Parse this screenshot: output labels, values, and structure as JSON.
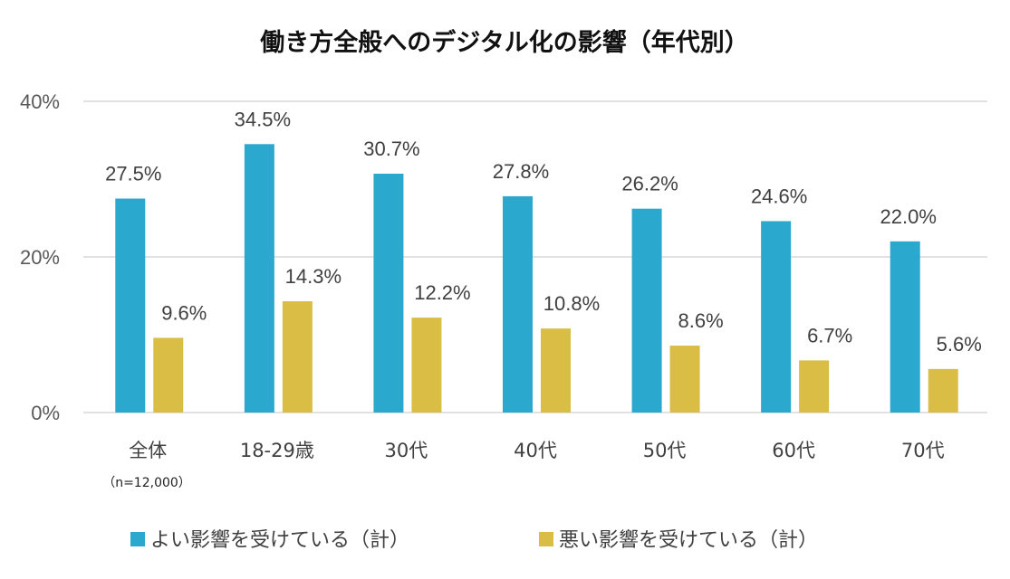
{
  "chart_data": {
    "type": "bar",
    "title": "働き方全般へのデジタル化の影響（年代別）",
    "categories": [
      "全体",
      "18-29歳",
      "30代",
      "40代",
      "50代",
      "60代",
      "70代"
    ],
    "category_note": "（n=12,000）",
    "series": [
      {
        "name": "よい影響を受けている（計）",
        "color": "#2AA8CE",
        "values": [
          27.5,
          34.5,
          30.7,
          27.8,
          26.2,
          24.6,
          22.0
        ],
        "labels": [
          "27.5%",
          "34.5%",
          "30.7%",
          "27.8%",
          "26.2%",
          "24.6%",
          "22.0%"
        ]
      },
      {
        "name": "悪い影響を受けている（計）",
        "color": "#D9BD44",
        "values": [
          9.6,
          14.3,
          12.2,
          10.8,
          8.6,
          6.7,
          5.6
        ],
        "labels": [
          "9.6%",
          "14.3%",
          "12.2%",
          "10.8%",
          "8.6%",
          "6.7%",
          "5.6%"
        ]
      }
    ],
    "yticks": [
      {
        "value": 0,
        "label": "0%"
      },
      {
        "value": 20,
        "label": "20%"
      },
      {
        "value": 40,
        "label": "40%"
      }
    ],
    "ylim": [
      0,
      40
    ],
    "grid": true,
    "legend": "bottom",
    "xlabel": "",
    "ylabel": ""
  }
}
